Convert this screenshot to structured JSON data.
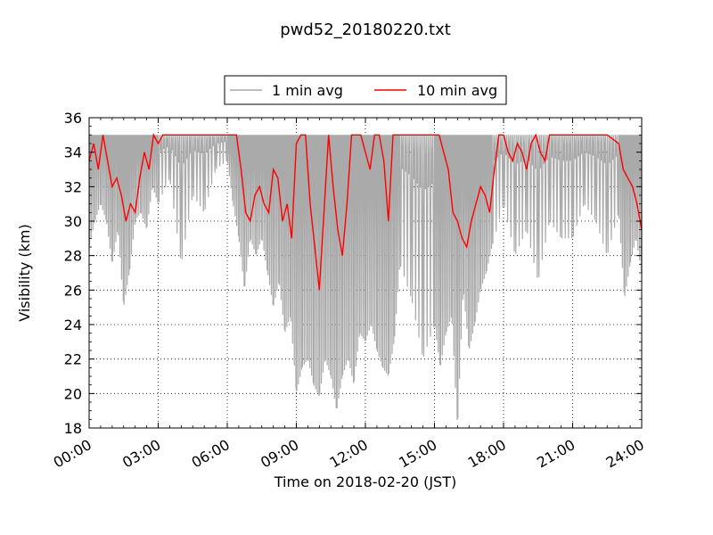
{
  "chart_data": {
    "type": "line",
    "title": "pwd52_20180220.txt",
    "xlabel": "Time on 2018-02-20 (JST)",
    "ylabel": "Visibility (km)",
    "xlim_hours": [
      0,
      24
    ],
    "ylim": [
      18,
      36
    ],
    "x_ticks": [
      "00:00",
      "03:00",
      "06:00",
      "09:00",
      "12:00",
      "15:00",
      "18:00",
      "21:00",
      "24:00"
    ],
    "y_ticks": [
      "18",
      "20",
      "22",
      "24",
      "26",
      "28",
      "30",
      "32",
      "34",
      "36"
    ],
    "grid": true,
    "legend_position": "top-center, above plot",
    "series": [
      {
        "name": "1 min avg",
        "color": "#aaaaaa",
        "x_hours": [
          0.0,
          0.25,
          0.5,
          0.75,
          1.0,
          1.25,
          1.5,
          1.75,
          2.0,
          2.25,
          2.5,
          2.75,
          3.0,
          3.5,
          4.0,
          4.5,
          5.0,
          5.5,
          6.0,
          6.25,
          6.5,
          6.75,
          7.0,
          7.25,
          7.5,
          7.75,
          8.0,
          8.25,
          8.5,
          8.75,
          9.0,
          9.25,
          9.5,
          9.75,
          10.0,
          10.25,
          10.5,
          10.75,
          11.0,
          11.25,
          11.5,
          11.75,
          12.0,
          12.25,
          12.5,
          12.75,
          13.0,
          13.25,
          13.5,
          14.0,
          14.5,
          15.0,
          15.25,
          15.5,
          15.75,
          16.0,
          16.25,
          16.5,
          16.75,
          17.0,
          17.25,
          17.5,
          18.0,
          18.5,
          19.0,
          19.5,
          20.0,
          20.5,
          21.0,
          21.5,
          22.0,
          22.5,
          23.0,
          23.25,
          23.5,
          23.75,
          24.0
        ],
        "y_low": [
          28.5,
          30.0,
          31.0,
          30.0,
          27.5,
          29.5,
          25.0,
          27.0,
          30.0,
          30.5,
          29.5,
          32.0,
          31.0,
          32.5,
          27.5,
          31.5,
          30.5,
          33.0,
          33.5,
          31.0,
          29.0,
          26.0,
          29.0,
          28.0,
          29.0,
          27.0,
          25.0,
          26.5,
          23.5,
          24.5,
          20.0,
          21.5,
          22.0,
          20.5,
          19.8,
          22.0,
          21.0,
          19.0,
          21.0,
          22.0,
          20.5,
          23.5,
          23.0,
          24.0,
          22.5,
          21.5,
          21.0,
          23.0,
          27.5,
          25.5,
          22.0,
          24.0,
          21.5,
          23.5,
          24.5,
          18.0,
          26.0,
          22.5,
          24.0,
          26.0,
          27.0,
          28.5,
          31.0,
          28.0,
          29.5,
          26.5,
          30.0,
          29.0,
          29.0,
          31.0,
          30.0,
          28.0,
          30.5,
          25.5,
          27.5,
          29.0,
          27.0
        ],
        "y_high": [
          35.0,
          35.0,
          35.0,
          35.0,
          35.0,
          35.0,
          35.0,
          35.0,
          35.0,
          35.0,
          35.0,
          35.0,
          35.0,
          35.0,
          35.0,
          35.0,
          35.0,
          35.0,
          35.0,
          35.0,
          35.0,
          35.0,
          35.0,
          35.0,
          35.0,
          35.0,
          35.0,
          35.0,
          35.0,
          35.0,
          35.0,
          35.0,
          35.0,
          35.0,
          35.0,
          35.0,
          35.0,
          35.0,
          35.0,
          35.0,
          35.0,
          35.0,
          35.0,
          35.0,
          35.0,
          35.0,
          35.0,
          35.0,
          35.0,
          35.0,
          35.0,
          35.0,
          35.0,
          35.0,
          35.0,
          35.0,
          35.0,
          35.0,
          35.0,
          35.0,
          35.0,
          35.0,
          35.0,
          35.0,
          35.0,
          35.0,
          35.0,
          35.0,
          35.0,
          35.0,
          35.0,
          35.0,
          35.0,
          35.0,
          35.0,
          35.0,
          35.0
        ]
      },
      {
        "name": "10 min avg",
        "color": "#ff0000",
        "x_hours": [
          0.0,
          0.2,
          0.4,
          0.6,
          0.8,
          1.0,
          1.2,
          1.4,
          1.6,
          1.8,
          2.0,
          2.2,
          2.4,
          2.6,
          2.8,
          3.0,
          3.2,
          3.4,
          3.6,
          4.0,
          4.5,
          5.0,
          5.5,
          6.0,
          6.2,
          6.4,
          6.6,
          6.8,
          7.0,
          7.2,
          7.4,
          7.6,
          7.8,
          8.0,
          8.2,
          8.4,
          8.6,
          8.8,
          9.0,
          9.2,
          9.4,
          9.6,
          9.8,
          10.0,
          10.2,
          10.4,
          10.6,
          10.8,
          11.0,
          11.2,
          11.4,
          11.6,
          11.8,
          12.0,
          12.2,
          12.4,
          12.6,
          12.8,
          13.0,
          13.2,
          13.4,
          13.6,
          14.0,
          14.5,
          15.0,
          15.2,
          15.4,
          15.6,
          15.8,
          16.0,
          16.2,
          16.4,
          16.6,
          16.8,
          17.0,
          17.2,
          17.4,
          17.6,
          17.8,
          18.0,
          18.2,
          18.4,
          18.6,
          18.8,
          19.0,
          19.2,
          19.4,
          19.6,
          19.8,
          20.0,
          20.5,
          21.0,
          21.5,
          22.0,
          22.5,
          23.0,
          23.2,
          23.4,
          23.6,
          23.8,
          24.0
        ],
        "values": [
          33.5,
          34.5,
          33.0,
          35.0,
          33.5,
          32.0,
          32.5,
          31.5,
          30.0,
          31.0,
          30.5,
          32.5,
          34.0,
          33.0,
          35.0,
          34.5,
          35.0,
          35.0,
          35.0,
          35.0,
          35.0,
          35.0,
          35.0,
          35.0,
          35.0,
          35.0,
          33.0,
          30.5,
          30.0,
          31.5,
          32.0,
          31.0,
          30.5,
          33.0,
          32.5,
          30.0,
          31.0,
          29.0,
          34.5,
          35.0,
          35.0,
          31.0,
          28.5,
          26.0,
          30.5,
          35.0,
          32.0,
          29.5,
          28.0,
          31.0,
          35.0,
          35.0,
          35.0,
          34.0,
          33.0,
          35.0,
          35.0,
          33.5,
          30.0,
          35.0,
          35.0,
          35.0,
          35.0,
          35.0,
          35.0,
          35.0,
          34.0,
          33.0,
          30.5,
          30.0,
          29.0,
          28.5,
          30.0,
          31.0,
          32.0,
          31.5,
          30.5,
          33.0,
          35.0,
          35.0,
          34.0,
          33.5,
          34.5,
          34.0,
          33.0,
          34.5,
          35.0,
          34.0,
          33.5,
          35.0,
          35.0,
          35.0,
          35.0,
          35.0,
          35.0,
          34.5,
          33.0,
          32.5,
          32.0,
          31.0,
          29.5
        ]
      }
    ]
  }
}
